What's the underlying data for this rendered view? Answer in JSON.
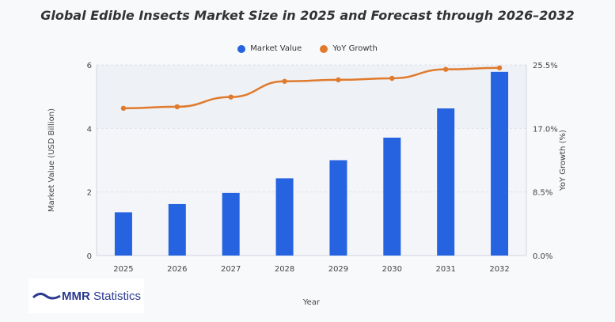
{
  "chart_data": {
    "type": "bar+line",
    "title": "Global Edible Insects Market Size in 2025 and Forecast through 2026–2032",
    "xlabel": "Year",
    "ylabel": "Market Value (USD Billion)",
    "y2label": "YoY Growth (%)",
    "categories": [
      "2025",
      "2026",
      "2027",
      "2028",
      "2029",
      "2030",
      "2031",
      "2032"
    ],
    "ylim": [
      0,
      6
    ],
    "y_ticks": [
      "0",
      "2",
      "4",
      "6"
    ],
    "y2lim": [
      0,
      25.5
    ],
    "y2_ticks": [
      "0.0%",
      "8.5%",
      "17.0%",
      "25.5%"
    ],
    "grid": true,
    "legend_position": "top",
    "series": [
      {
        "name": "Market Value",
        "type": "bar",
        "axis": "left",
        "color": "#2563e0",
        "values": [
          1.36,
          1.62,
          1.97,
          2.43,
          3.0,
          3.71,
          4.63,
          5.78
        ]
      },
      {
        "name": "YoY Growth",
        "type": "line",
        "axis": "right",
        "color": "#e07a2c",
        "values": [
          19.7,
          19.9,
          21.2,
          23.3,
          23.5,
          23.7,
          24.9,
          25.1
        ]
      }
    ]
  },
  "logo": {
    "text": "MMR Statistics",
    "bold": "MMR",
    "rest": " Statistics"
  }
}
